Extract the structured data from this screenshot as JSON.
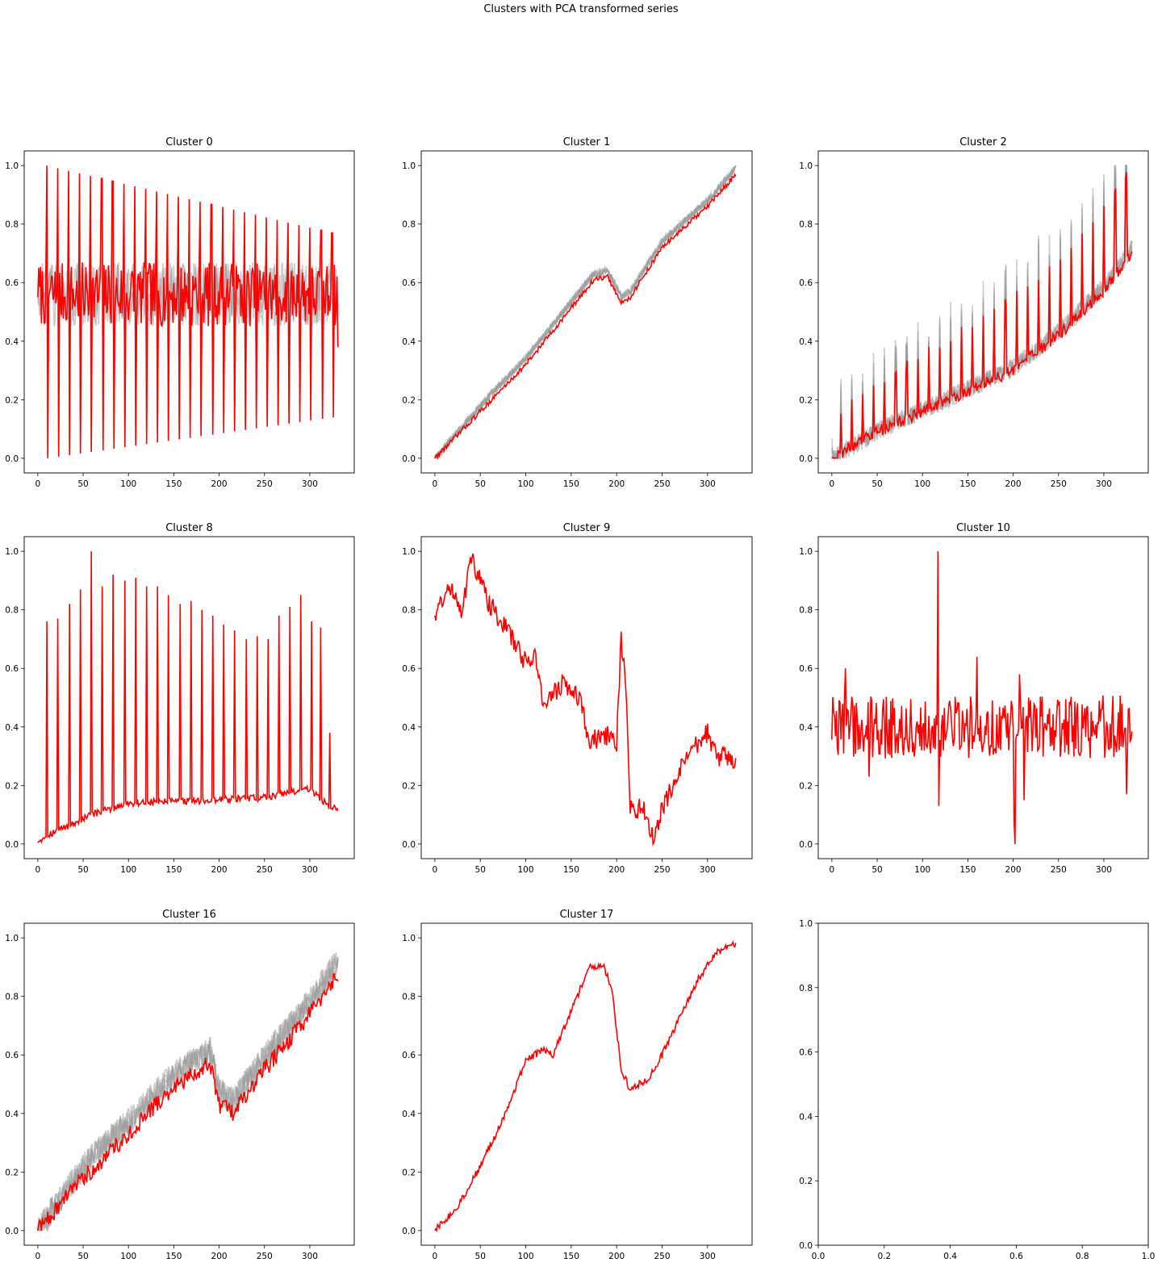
{
  "suptitle": "Clusters with PCA transformed series",
  "style": {
    "mean_color": "#ff0000",
    "member_color": "#999999",
    "member_opacity": 0.5
  },
  "chart_data": [
    {
      "type": "line",
      "title": "Cluster 0",
      "xlim": [
        -15,
        349
      ],
      "ylim": [
        -0.05,
        1.05
      ],
      "xticks": [
        0,
        50,
        100,
        150,
        200,
        250,
        300
      ],
      "yticks": [
        0.0,
        0.2,
        0.4,
        0.6,
        0.8,
        1.0
      ],
      "series_count": 332,
      "members": 3,
      "pattern": "spiky",
      "shape": {
        "base_start": 0.56,
        "base_end": 0.56,
        "noise": 0.06,
        "spike_period": 12.1,
        "spike_phase": 10,
        "spike_high": [
          1.0,
          0.77
        ],
        "spike_low": [
          0.0,
          0.14
        ],
        "start": 0.55,
        "end": 0.38
      }
    },
    {
      "type": "line",
      "title": "Cluster 1",
      "xlim": [
        -15,
        349
      ],
      "ylim": [
        -0.05,
        1.05
      ],
      "xticks": [
        0,
        50,
        100,
        150,
        200,
        250,
        300
      ],
      "yticks": [
        0.0,
        0.2,
        0.4,
        0.6,
        0.8,
        1.0
      ],
      "series_count": 332,
      "members": 6,
      "pattern": "trend",
      "shape": {
        "knots": [
          [
            0,
            0.0
          ],
          [
            100,
            0.32
          ],
          [
            175,
            0.61
          ],
          [
            190,
            0.62
          ],
          [
            205,
            0.53
          ],
          [
            215,
            0.55
          ],
          [
            250,
            0.72
          ],
          [
            300,
            0.86
          ],
          [
            331,
            0.97
          ]
        ],
        "noise": 0.008
      }
    },
    {
      "type": "line",
      "title": "Cluster 2",
      "xlim": [
        -15,
        349
      ],
      "ylim": [
        -0.05,
        1.05
      ],
      "xticks": [
        0,
        50,
        100,
        150,
        200,
        250,
        300
      ],
      "yticks": [
        0.0,
        0.2,
        0.4,
        0.6,
        0.8,
        1.0
      ],
      "series_count": 332,
      "members": 5,
      "pattern": "spiky-rise",
      "shape": {
        "knots": [
          [
            0,
            0.0
          ],
          [
            50,
            0.09
          ],
          [
            100,
            0.16
          ],
          [
            150,
            0.23
          ],
          [
            200,
            0.3
          ],
          [
            250,
            0.42
          ],
          [
            300,
            0.57
          ],
          [
            331,
            0.7
          ]
        ],
        "noise": 0.02,
        "spike_period": 12.1,
        "spike_phase": 10,
        "spike_add": [
          0.15,
          0.3
        ]
      }
    },
    {
      "type": "line",
      "title": "Cluster 8",
      "xlim": [
        -15,
        349
      ],
      "ylim": [
        -0.05,
        1.05
      ],
      "xticks": [
        0,
        50,
        100,
        150,
        200,
        250,
        300
      ],
      "yticks": [
        0.0,
        0.2,
        0.4,
        0.6,
        0.8,
        1.0
      ],
      "series_count": 332,
      "members": 0,
      "pattern": "spiky-peaks",
      "shape": {
        "knots": [
          [
            0,
            0.01
          ],
          [
            10,
            0.03
          ],
          [
            60,
            0.1
          ],
          [
            100,
            0.14
          ],
          [
            200,
            0.15
          ],
          [
            250,
            0.16
          ],
          [
            300,
            0.19
          ],
          [
            320,
            0.13
          ],
          [
            331,
            0.12
          ]
        ],
        "noise": 0.012,
        "peaks": [
          [
            10,
            0.76
          ],
          [
            22,
            0.77
          ],
          [
            35,
            0.82
          ],
          [
            47,
            0.87
          ],
          [
            59,
            1.0
          ],
          [
            71,
            0.88
          ],
          [
            83,
            0.92
          ],
          [
            96,
            0.9
          ],
          [
            108,
            0.91
          ],
          [
            120,
            0.88
          ],
          [
            132,
            0.88
          ],
          [
            144,
            0.85
          ],
          [
            157,
            0.82
          ],
          [
            169,
            0.83
          ],
          [
            181,
            0.8
          ],
          [
            193,
            0.78
          ],
          [
            205,
            0.75
          ],
          [
            217,
            0.73
          ],
          [
            230,
            0.7
          ],
          [
            242,
            0.71
          ],
          [
            254,
            0.7
          ],
          [
            266,
            0.78
          ],
          [
            278,
            0.81
          ],
          [
            290,
            0.85
          ],
          [
            302,
            0.76
          ],
          [
            312,
            0.74
          ],
          [
            322,
            0.38
          ]
        ]
      }
    },
    {
      "type": "line",
      "title": "Cluster 9",
      "xlim": [
        -15,
        349
      ],
      "ylim": [
        -0.05,
        1.05
      ],
      "xticks": [
        0,
        50,
        100,
        150,
        200,
        250,
        300
      ],
      "yticks": [
        0.0,
        0.2,
        0.4,
        0.6,
        0.8,
        1.0
      ],
      "series_count": 332,
      "members": 0,
      "pattern": "trend",
      "shape": {
        "knots": [
          [
            0,
            0.78
          ],
          [
            10,
            0.85
          ],
          [
            20,
            0.87
          ],
          [
            30,
            0.8
          ],
          [
            40,
            0.98
          ],
          [
            50,
            0.9
          ],
          [
            60,
            0.82
          ],
          [
            80,
            0.73
          ],
          [
            100,
            0.62
          ],
          [
            110,
            0.65
          ],
          [
            120,
            0.47
          ],
          [
            140,
            0.55
          ],
          [
            160,
            0.5
          ],
          [
            170,
            0.35
          ],
          [
            190,
            0.37
          ],
          [
            200,
            0.35
          ],
          [
            205,
            0.7
          ],
          [
            210,
            0.55
          ],
          [
            215,
            0.12
          ],
          [
            230,
            0.12
          ],
          [
            240,
            0.02
          ],
          [
            250,
            0.12
          ],
          [
            270,
            0.25
          ],
          [
            290,
            0.35
          ],
          [
            300,
            0.38
          ],
          [
            310,
            0.3
          ],
          [
            320,
            0.3
          ],
          [
            331,
            0.27
          ]
        ],
        "noise": 0.035
      }
    },
    {
      "type": "line",
      "title": "Cluster 10",
      "xlim": [
        -15,
        349
      ],
      "ylim": [
        -0.05,
        1.05
      ],
      "xticks": [
        0,
        50,
        100,
        150,
        200,
        250,
        300
      ],
      "yticks": [
        0.0,
        0.2,
        0.4,
        0.6,
        0.8,
        1.0
      ],
      "series_count": 332,
      "members": 0,
      "pattern": "noise",
      "shape": {
        "knots": [
          [
            0,
            0.4
          ],
          [
            331,
            0.4
          ]
        ],
        "noise": 0.06,
        "events": [
          [
            117,
            1.0
          ],
          [
            118,
            0.13
          ],
          [
            15,
            0.6
          ],
          [
            41,
            0.23
          ],
          [
            202,
            0.0
          ],
          [
            201,
            0.08
          ],
          [
            212,
            0.15
          ],
          [
            325,
            0.17
          ],
          [
            160,
            0.64
          ],
          [
            207,
            0.58
          ]
        ]
      }
    },
    {
      "type": "line",
      "title": "Cluster 16",
      "xlim": [
        -15,
        349
      ],
      "ylim": [
        -0.05,
        1.05
      ],
      "xticks": [
        0,
        50,
        100,
        150,
        200,
        250,
        300
      ],
      "yticks": [
        0.0,
        0.2,
        0.4,
        0.6,
        0.8,
        1.0
      ],
      "series_count": 332,
      "members": 5,
      "pattern": "trend",
      "shape": {
        "knots": [
          [
            0,
            0.0
          ],
          [
            50,
            0.18
          ],
          [
            100,
            0.33
          ],
          [
            150,
            0.49
          ],
          [
            190,
            0.57
          ],
          [
            200,
            0.43
          ],
          [
            215,
            0.4
          ],
          [
            250,
            0.55
          ],
          [
            300,
            0.74
          ],
          [
            331,
            0.88
          ]
        ],
        "noise": 0.03
      }
    },
    {
      "type": "line",
      "title": "Cluster 17",
      "xlim": [
        -15,
        349
      ],
      "ylim": [
        -0.05,
        1.05
      ],
      "xticks": [
        0,
        50,
        100,
        150,
        200,
        250,
        300
      ],
      "yticks": [
        0.0,
        0.2,
        0.4,
        0.6,
        0.8,
        1.0
      ],
      "series_count": 332,
      "members": 0,
      "pattern": "trend",
      "shape": {
        "knots": [
          [
            0,
            0.0
          ],
          [
            25,
            0.08
          ],
          [
            50,
            0.22
          ],
          [
            75,
            0.38
          ],
          [
            100,
            0.58
          ],
          [
            120,
            0.62
          ],
          [
            130,
            0.6
          ],
          [
            150,
            0.75
          ],
          [
            170,
            0.9
          ],
          [
            185,
            0.91
          ],
          [
            195,
            0.82
          ],
          [
            205,
            0.55
          ],
          [
            215,
            0.48
          ],
          [
            235,
            0.52
          ],
          [
            250,
            0.6
          ],
          [
            270,
            0.73
          ],
          [
            290,
            0.86
          ],
          [
            310,
            0.95
          ],
          [
            331,
            0.98
          ]
        ],
        "noise": 0.012
      }
    },
    {
      "type": "line",
      "title": "",
      "xlim": [
        0.0,
        1.0
      ],
      "ylim": [
        0.0,
        1.0
      ],
      "xticks": [
        0.0,
        0.2,
        0.4,
        0.6,
        0.8,
        1.0
      ],
      "yticks": [
        0.0,
        0.2,
        0.4,
        0.6,
        0.8,
        1.0
      ],
      "members": 0,
      "pattern": "empty"
    }
  ]
}
